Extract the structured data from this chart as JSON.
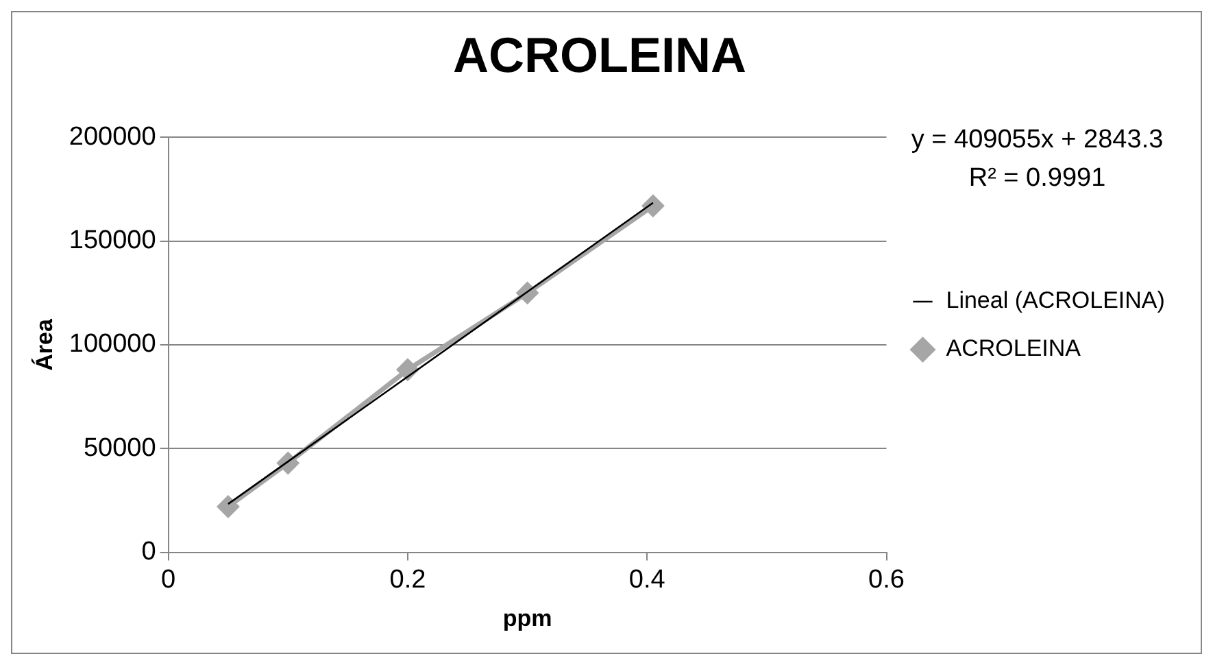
{
  "chart_data": {
    "type": "scatter",
    "title": "ACROLEINA",
    "xlabel": "ppm",
    "ylabel": "Área",
    "series": [
      {
        "name": "ACROLEINA",
        "type": "line",
        "color": "#a6a6a6",
        "marker": "diamond",
        "x": [
          0.05,
          0.1,
          0.2,
          0.3,
          0.405
        ],
        "values": [
          22000,
          43000,
          88000,
          125000,
          167000
        ]
      },
      {
        "name": "Lineal (ACROLEINA)",
        "type": "line",
        "color": "#000000",
        "marker": "none",
        "x": [
          0.05,
          0.405
        ],
        "values": [
          23300,
          168500
        ]
      }
    ],
    "xlim": [
      0,
      0.6
    ],
    "xticks": [
      0,
      0.2,
      0.4,
      0.6
    ],
    "ylim": [
      0,
      200000
    ],
    "yticks": [
      0,
      50000,
      100000,
      150000,
      200000
    ],
    "grid": "y",
    "legend": "right",
    "annotations": [
      "y = 409055x + 2843.3",
      "R² = 0.9991"
    ]
  }
}
